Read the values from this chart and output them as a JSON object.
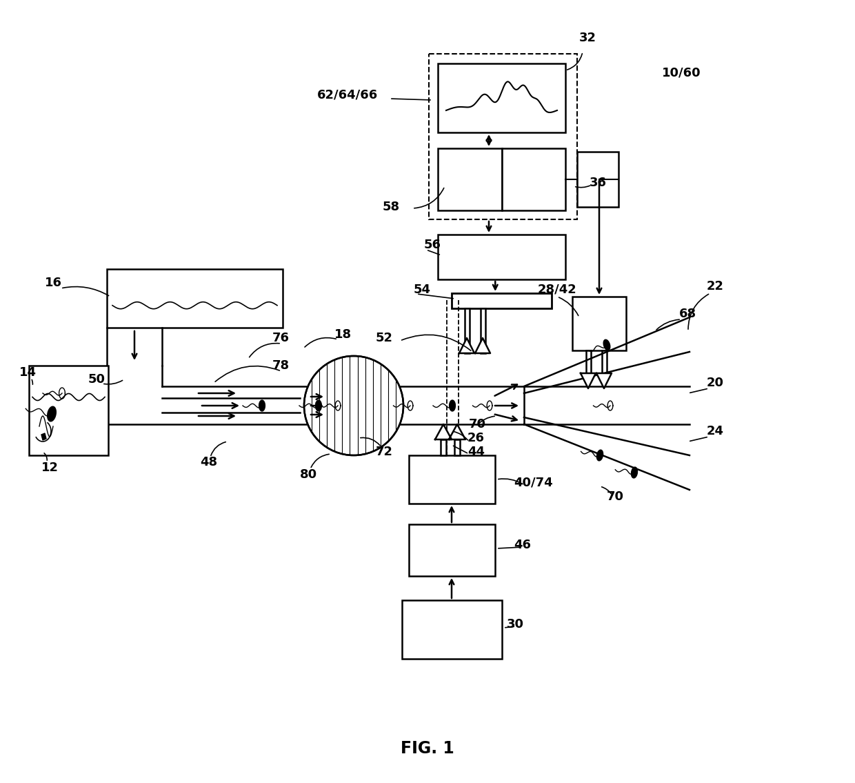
{
  "title": "FIG. 1",
  "bg": "#ffffff"
}
